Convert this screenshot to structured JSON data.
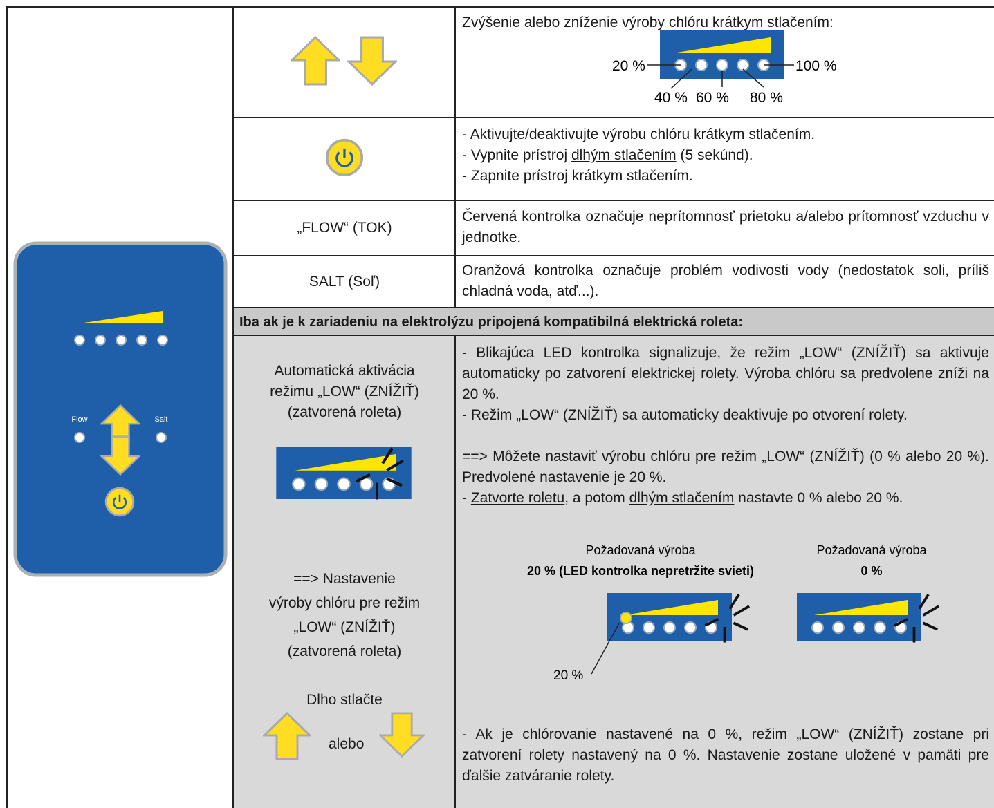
{
  "device": {
    "flow_label": "Flow",
    "salt_label": "Salt"
  },
  "table": {
    "row_arrows": {
      "text": "Zvýšenie alebo zníženie výroby chlóru krátkym stlačením:",
      "levels": [
        "20 %",
        "40 %",
        "60 %",
        "80 %",
        "100 %"
      ]
    },
    "row_power": {
      "line1": "- Aktivujte/deaktivujte výrobu chlóru krátkym stlačením.",
      "line2_start": "- Vypnite prístroj ",
      "line2_underlined": "dlhým stlačením",
      "line2_end": " (5 sekúnd).",
      "line3": "- Zapnite prístroj krátkym stlačením."
    },
    "row_flow": {
      "label": "„FLOW“ (TOK)",
      "text": "Červená kontrolka označuje neprítomnosť prietoku a/alebo prítomnosť vzduchu v jednotke."
    },
    "row_salt": {
      "label": "SALT (Soľ)",
      "text": "Oranžová kontrolka označuje problém vodivosti vody (nedostatok soli, príliš chladná voda, atď...)."
    },
    "section_header": "Iba ak je k zariadeniu na elektrolýzu pripojená kompatibilná elektrická roleta:",
    "row_low": {
      "left_auto": [
        "Automatická aktivácia",
        "režimu „LOW“ (ZNÍŽIŤ)",
        "(zatvorená roleta)"
      ],
      "left_setting": [
        "==> Nastavenie",
        "výroby chlóru pre režim",
        "„LOW“ (ZNÍŽIŤ)",
        "(zatvorená roleta)"
      ],
      "press_label": "Dlho stlačte",
      "or_label": "alebo",
      "p1": "- Blikajúca LED kontrolka signalizuje, že režim „LOW“ (ZNÍŽIŤ) sa aktivuje automaticky po zatvorení elektrickej rolety. Výroba chlóru sa predvolene zníži na 20 %.",
      "p2": "- Režim „LOW“ (ZNÍŽIŤ) sa automaticky deaktivuje po otvorení rolety.",
      "p3": "==> Môžete nastaviť výrobu chlóru pre režim „LOW“ (ZNÍŽIŤ) (0 % alebo 20 %). Predvolené nastavenie je 20 %.",
      "p4": [
        "- ",
        "Zatvorte roletu",
        ", a potom ",
        "dlhým stlačením",
        " nastavte 0 % alebo 20 %."
      ],
      "option_20": {
        "caption": "Požadovaná výroba",
        "bold": "20 % (LED kontrolka nepretržite svieti)",
        "led_label": "20 %"
      },
      "option_0": {
        "caption": "Požadovaná výroba",
        "bold": "0 %"
      },
      "p5": "- Ak je chlórovanie nastavené na 0 %, režim „LOW“ (ZNÍŽIŤ) zostane pri zatvorení rolety nastavený na 0 %. Nastavenie zostane uložené v pamäti pre ďalšie zatváranie rolety."
    }
  }
}
